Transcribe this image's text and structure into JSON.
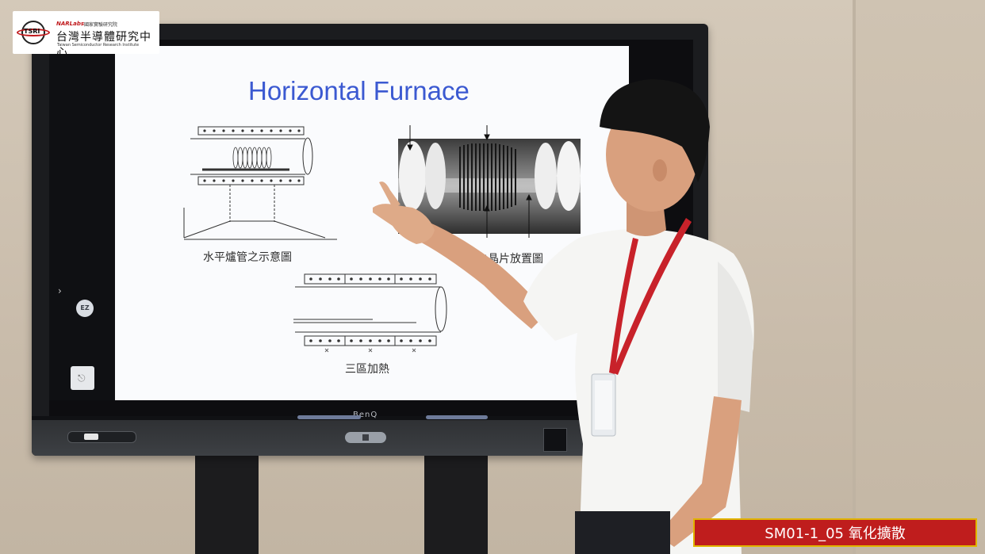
{
  "slide": {
    "title": "Horizontal Furnace",
    "caption_left": "水平爐管之示意圖",
    "caption_right": "爐管之晶片放置圖",
    "caption_bottom": "三區加熱"
  },
  "logo": {
    "brand": "NARLabs",
    "brand_sub": "國家實驗研究院",
    "name": "台灣半導體研究中心",
    "english": "Taiwan Semiconductor Research Institute",
    "mark": "TSRI"
  },
  "tv": {
    "brand": "BenQ",
    "sidebar_badge": "EZ",
    "sidebar_chevron": "›"
  },
  "banner": {
    "text": "SM01-1_05 氧化擴散"
  },
  "colors": {
    "title_blue": "#3b59d1",
    "banner_red": "#bf1d1d",
    "banner_border": "#e0b400",
    "lanyard_red": "#c8222a"
  }
}
